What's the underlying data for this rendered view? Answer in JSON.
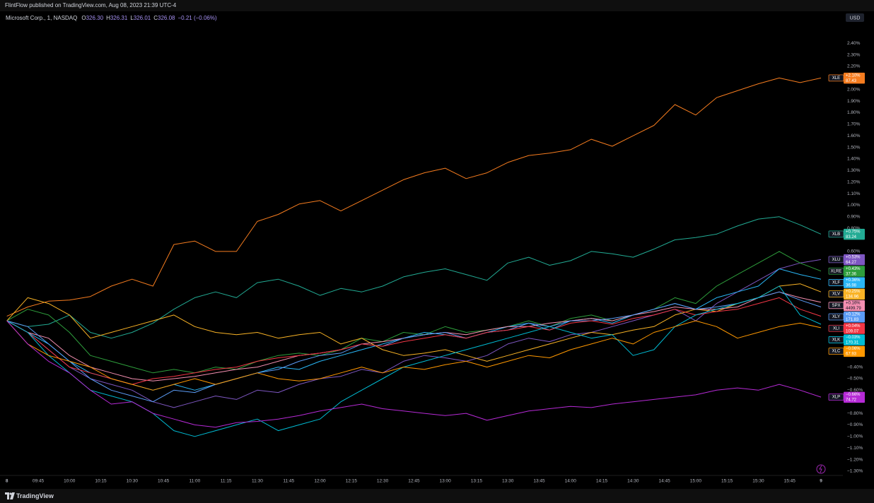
{
  "page": {
    "publisher": "FlintFlow published on TradingView.com, Aug 08, 2023 21:39 UTC-4",
    "brand": "TradingView",
    "currency": "USD"
  },
  "chart_data": {
    "type": "line",
    "symbol": "Microsoft Corp., 1, NASDAQ",
    "ohlc": [
      {
        "label": "O",
        "value": "326.30"
      },
      {
        "label": "H",
        "value": "326.31"
      },
      {
        "label": "L",
        "value": "326.01"
      },
      {
        "label": "C",
        "value": "326.08"
      }
    ],
    "change": "−0.21 (−0.06%)",
    "grid": false,
    "x": [
      0,
      10,
      20,
      30,
      40,
      50,
      60,
      70,
      80,
      90,
      100,
      110,
      120,
      130,
      140,
      150,
      160,
      170,
      180,
      190,
      200,
      210,
      220,
      230,
      240,
      250,
      260,
      270,
      280,
      290,
      300,
      310,
      320,
      330,
      340,
      350,
      360,
      370,
      380,
      390
    ],
    "xlim": [
      0,
      390
    ],
    "xticks": [
      {
        "value": 0,
        "label": "8"
      },
      {
        "value": 15,
        "label": "09:45"
      },
      {
        "value": 30,
        "label": "10:00"
      },
      {
        "value": 45,
        "label": "10:15"
      },
      {
        "value": 60,
        "label": "10:30"
      },
      {
        "value": 75,
        "label": "10:45"
      },
      {
        "value": 90,
        "label": "11:00"
      },
      {
        "value": 105,
        "label": "11:15"
      },
      {
        "value": 120,
        "label": "11:30"
      },
      {
        "value": 135,
        "label": "11:45"
      },
      {
        "value": 150,
        "label": "12:00"
      },
      {
        "value": 165,
        "label": "12:15"
      },
      {
        "value": 180,
        "label": "12:30"
      },
      {
        "value": 195,
        "label": "12:45"
      },
      {
        "value": 210,
        "label": "13:00"
      },
      {
        "value": 225,
        "label": "13:15"
      },
      {
        "value": 240,
        "label": "13:30"
      },
      {
        "value": 255,
        "label": "13:45"
      },
      {
        "value": 270,
        "label": "14:00"
      },
      {
        "value": 285,
        "label": "14:15"
      },
      {
        "value": 300,
        "label": "14:30"
      },
      {
        "value": 315,
        "label": "14:45"
      },
      {
        "value": 330,
        "label": "15:00"
      },
      {
        "value": 345,
        "label": "15:15"
      },
      {
        "value": 360,
        "label": "15:30"
      },
      {
        "value": 375,
        "label": "15:45"
      },
      {
        "value": 390,
        "label": "9"
      }
    ],
    "ylim": [
      -1.38,
      2.53
    ],
    "yticks": [
      {
        "value": 2.4,
        "label": "2.40%"
      },
      {
        "value": 2.3,
        "label": "2.30%"
      },
      {
        "value": 2.2,
        "label": "2.20%"
      },
      {
        "value": 2.0,
        "label": "2.00%"
      },
      {
        "value": 1.9,
        "label": "1.90%"
      },
      {
        "value": 1.8,
        "label": "1.80%"
      },
      {
        "value": 1.7,
        "label": "1.70%"
      },
      {
        "value": 1.6,
        "label": "1.60%"
      },
      {
        "value": 1.5,
        "label": "1.50%"
      },
      {
        "value": 1.4,
        "label": "1.40%"
      },
      {
        "value": 1.3,
        "label": "1.30%"
      },
      {
        "value": 1.2,
        "label": "1.20%"
      },
      {
        "value": 1.1,
        "label": "1.10%"
      },
      {
        "value": 1.0,
        "label": "1.00%"
      },
      {
        "value": 0.9,
        "label": "0.90%"
      },
      {
        "value": 0.8,
        "label": "0.80%"
      },
      {
        "value": 0.6,
        "label": "0.60%"
      },
      {
        "value": -0.4,
        "label": "−0.40%"
      },
      {
        "value": -0.5,
        "label": "−0.50%"
      },
      {
        "value": -0.6,
        "label": "−0.60%"
      },
      {
        "value": -0.8,
        "label": "−0.80%"
      },
      {
        "value": -0.9,
        "label": "−0.90%"
      },
      {
        "value": -1.0,
        "label": "−1.00%"
      },
      {
        "value": -1.1,
        "label": "−1.10%"
      },
      {
        "value": -1.2,
        "label": "−1.20%"
      },
      {
        "value": -1.3,
        "label": "−1.30%"
      }
    ],
    "series": [
      {
        "name": "XLE",
        "color": "#f57c1f",
        "last_label": "+2.10%",
        "price": "87.43",
        "values": [
          0.04,
          0.12,
          0.17,
          0.18,
          0.21,
          0.3,
          0.36,
          0.3,
          0.66,
          0.69,
          0.6,
          0.6,
          0.86,
          0.92,
          1.01,
          1.04,
          0.95,
          1.04,
          1.13,
          1.22,
          1.28,
          1.32,
          1.23,
          1.28,
          1.37,
          1.43,
          1.45,
          1.48,
          1.57,
          1.51,
          1.6,
          1.69,
          1.87,
          1.78,
          1.93,
          1.99,
          2.05,
          2.1,
          2.06,
          2.1
        ]
      },
      {
        "name": "XLB",
        "color": "#22ab94",
        "last_label": "+0.75%",
        "price": "83.24",
        "values": [
          0,
          -0.05,
          -0.03,
          0.05,
          -0.1,
          -0.15,
          -0.1,
          -0.02,
          0.1,
          0.2,
          0.25,
          0.2,
          0.33,
          0.36,
          0.3,
          0.22,
          0.28,
          0.25,
          0.3,
          0.38,
          0.42,
          0.45,
          0.4,
          0.35,
          0.5,
          0.55,
          0.48,
          0.52,
          0.6,
          0.58,
          0.55,
          0.62,
          0.7,
          0.72,
          0.75,
          0.82,
          0.88,
          0.9,
          0.83,
          0.75
        ]
      },
      {
        "name": "XLU",
        "color": "#7e57c2",
        "last_label": "+0.53%",
        "price": "64.27",
        "values": [
          0,
          -0.1,
          -0.25,
          -0.4,
          -0.5,
          -0.55,
          -0.6,
          -0.7,
          -0.75,
          -0.7,
          -0.65,
          -0.68,
          -0.6,
          -0.62,
          -0.55,
          -0.5,
          -0.48,
          -0.42,
          -0.45,
          -0.35,
          -0.3,
          -0.32,
          -0.35,
          -0.3,
          -0.2,
          -0.15,
          -0.18,
          -0.12,
          -0.1,
          -0.05,
          0,
          0.05,
          0.1,
          0.0,
          0.15,
          0.25,
          0.35,
          0.45,
          0.5,
          0.53
        ]
      },
      {
        "name": "XLRE",
        "color": "#2e9e3c",
        "last_label": "+0.43%",
        "price": "37.36",
        "values": [
          0,
          0.1,
          0.05,
          -0.1,
          -0.3,
          -0.35,
          -0.4,
          -0.45,
          -0.42,
          -0.45,
          -0.4,
          -0.42,
          -0.35,
          -0.3,
          -0.28,
          -0.3,
          -0.25,
          -0.15,
          -0.18,
          -0.1,
          -0.12,
          -0.05,
          -0.1,
          -0.08,
          -0.05,
          0,
          -0.05,
          0.02,
          0.05,
          0.0,
          0.05,
          0.1,
          0.2,
          0.15,
          0.3,
          0.4,
          0.5,
          0.6,
          0.5,
          0.43
        ]
      },
      {
        "name": "XLF",
        "color": "#29b6f6",
        "last_label": "+0.36%",
        "price": "36.98",
        "values": [
          0,
          -0.1,
          -0.2,
          -0.35,
          -0.45,
          -0.5,
          -0.55,
          -0.6,
          -0.55,
          -0.6,
          -0.55,
          -0.5,
          -0.45,
          -0.4,
          -0.42,
          -0.35,
          -0.3,
          -0.25,
          -0.2,
          -0.15,
          -0.1,
          -0.12,
          -0.15,
          -0.1,
          -0.05,
          -0.02,
          -0.08,
          0,
          0.02,
          -0.02,
          0.05,
          0.1,
          0.15,
          0.1,
          0.2,
          0.25,
          0.3,
          0.45,
          0.4,
          0.36
        ]
      },
      {
        "name": "XLV",
        "color": "#f9b325",
        "last_label": "+0.25%",
        "price": "134.96",
        "values": [
          0,
          0.2,
          0.15,
          0.05,
          -0.15,
          -0.1,
          -0.05,
          0,
          0.05,
          -0.05,
          -0.1,
          -0.12,
          -0.1,
          -0.15,
          -0.12,
          -0.1,
          -0.2,
          -0.15,
          -0.25,
          -0.3,
          -0.28,
          -0.25,
          -0.3,
          -0.35,
          -0.3,
          -0.25,
          -0.2,
          -0.15,
          -0.1,
          -0.12,
          -0.08,
          -0.05,
          0.05,
          0.1,
          0.08,
          0.15,
          0.2,
          0.3,
          0.32,
          0.25
        ]
      },
      {
        "name": "SPX",
        "color": "#f48fb1",
        "last_label": "+0.16%",
        "price": "4499.79",
        "values": [
          0,
          -0.1,
          -0.15,
          -0.3,
          -0.4,
          -0.45,
          -0.5,
          -0.52,
          -0.5,
          -0.48,
          -0.45,
          -0.42,
          -0.4,
          -0.35,
          -0.3,
          -0.28,
          -0.25,
          -0.2,
          -0.18,
          -0.15,
          -0.12,
          -0.1,
          -0.12,
          -0.08,
          -0.05,
          -0.05,
          -0.02,
          0,
          0.02,
          0,
          0.05,
          0.08,
          0.12,
          0.1,
          0.1,
          0.12,
          0.2,
          0.25,
          0.2,
          0.16
        ]
      },
      {
        "name": "XLY",
        "color": "#5b9cf6",
        "last_label": "+0.12%",
        "price": "171.83",
        "values": [
          0,
          -0.05,
          -0.2,
          -0.35,
          -0.5,
          -0.6,
          -0.65,
          -0.7,
          -0.6,
          -0.62,
          -0.55,
          -0.5,
          -0.45,
          -0.42,
          -0.35,
          -0.3,
          -0.28,
          -0.2,
          -0.22,
          -0.15,
          -0.12,
          -0.1,
          -0.15,
          -0.1,
          -0.08,
          -0.02,
          -0.05,
          0,
          0.0,
          0.02,
          0.05,
          0.1,
          0.15,
          0.1,
          0.12,
          0.15,
          0.2,
          0.25,
          0.18,
          0.12
        ]
      },
      {
        "name": "XLI",
        "color": "#f23645",
        "last_label": "+0.04%",
        "price": "109.07",
        "values": [
          0,
          -0.1,
          -0.25,
          -0.4,
          -0.45,
          -0.5,
          -0.55,
          -0.5,
          -0.48,
          -0.45,
          -0.42,
          -0.4,
          -0.35,
          -0.32,
          -0.3,
          -0.28,
          -0.25,
          -0.2,
          -0.22,
          -0.18,
          -0.15,
          -0.12,
          -0.15,
          -0.1,
          -0.08,
          -0.05,
          -0.08,
          -0.02,
          0,
          -0.03,
          0.02,
          0.05,
          0.1,
          0.05,
          0.08,
          0.1,
          0.15,
          0.2,
          0.1,
          0.04
        ]
      },
      {
        "name": "XLK",
        "color": "#00bcd4",
        "last_label": "−0.03%",
        "price": "170.31",
        "values": [
          0,
          -0.1,
          -0.3,
          -0.45,
          -0.6,
          -0.65,
          -0.7,
          -0.8,
          -0.95,
          -1.0,
          -0.95,
          -0.9,
          -0.85,
          -0.95,
          -0.9,
          -0.85,
          -0.7,
          -0.6,
          -0.5,
          -0.4,
          -0.35,
          -0.3,
          -0.25,
          -0.2,
          -0.15,
          -0.1,
          -0.05,
          -0.1,
          -0.15,
          -0.12,
          -0.3,
          -0.25,
          -0.05,
          0.05,
          0.1,
          0.15,
          0.2,
          0.3,
          0.05,
          -0.03
        ]
      },
      {
        "name": "XLC",
        "color": "#ff9800",
        "last_label": "−0.06%",
        "price": "67.93",
        "values": [
          0,
          -0.2,
          -0.3,
          -0.35,
          -0.4,
          -0.5,
          -0.55,
          -0.6,
          -0.55,
          -0.5,
          -0.55,
          -0.5,
          -0.45,
          -0.5,
          -0.52,
          -0.5,
          -0.45,
          -0.4,
          -0.45,
          -0.4,
          -0.42,
          -0.38,
          -0.35,
          -0.4,
          -0.35,
          -0.3,
          -0.32,
          -0.25,
          -0.2,
          -0.15,
          -0.2,
          -0.1,
          -0.05,
          0,
          -0.05,
          -0.15,
          -0.1,
          -0.05,
          -0.02,
          -0.06
        ]
      },
      {
        "name": "XLP",
        "color": "#b62ad6",
        "last_label": "−0.66%",
        "price": "74.72",
        "values": [
          0,
          -0.2,
          -0.35,
          -0.45,
          -0.6,
          -0.72,
          -0.7,
          -0.8,
          -0.85,
          -0.9,
          -0.92,
          -0.88,
          -0.87,
          -0.85,
          -0.82,
          -0.78,
          -0.75,
          -0.72,
          -0.76,
          -0.78,
          -0.8,
          -0.82,
          -0.8,
          -0.86,
          -0.82,
          -0.78,
          -0.76,
          -0.74,
          -0.75,
          -0.72,
          -0.7,
          -0.68,
          -0.66,
          -0.64,
          -0.6,
          -0.58,
          -0.6,
          -0.55,
          -0.6,
          -0.66
        ]
      }
    ]
  }
}
